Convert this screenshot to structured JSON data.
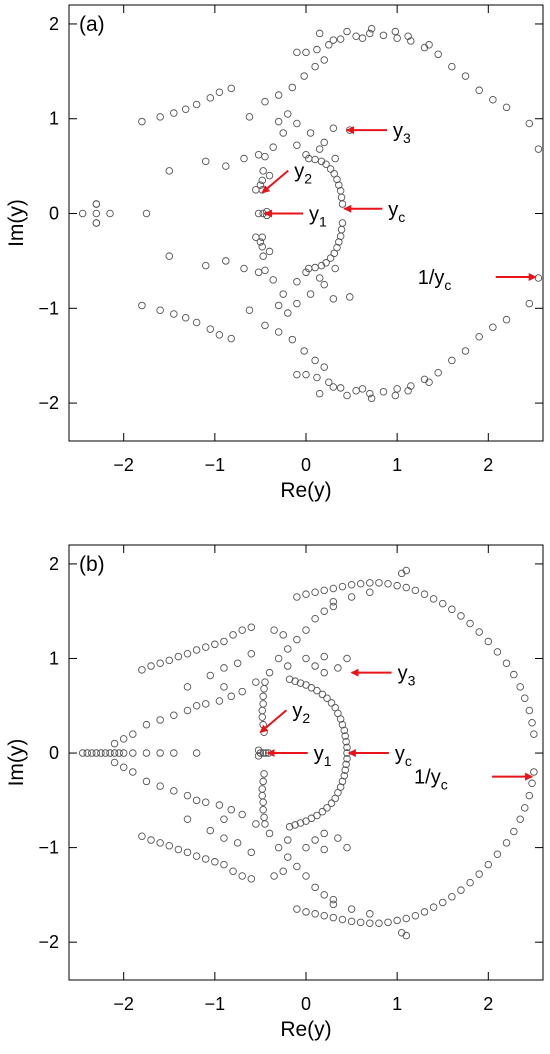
{
  "chart_data": [
    {
      "type": "scatter",
      "panel_label": "(a)",
      "xlabel": "Re(y)",
      "ylabel": "Im(y)",
      "xlim": [
        -2.6,
        2.6
      ],
      "ylim": [
        -2.4,
        2.2
      ],
      "xticks": [
        -2,
        -1,
        0,
        1,
        2
      ],
      "yticks": [
        -2,
        -1,
        0,
        1,
        2
      ],
      "grid": false,
      "marker": "open-circle",
      "points_upper_and_real": [
        [
          -2.45,
          0.0
        ],
        [
          -2.3,
          0.0
        ],
        [
          -2.15,
          0.0
        ],
        [
          -1.75,
          0.0
        ],
        [
          -2.3,
          0.1
        ],
        [
          -2.3,
          -0.1
        ],
        [
          -1.8,
          0.97
        ],
        [
          -1.6,
          1.02
        ],
        [
          -1.45,
          1.06
        ],
        [
          -1.32,
          1.1
        ],
        [
          -1.2,
          1.15
        ],
        [
          -1.05,
          1.22
        ],
        [
          -0.95,
          1.28
        ],
        [
          -0.82,
          1.32
        ],
        [
          -1.5,
          0.45
        ],
        [
          -1.1,
          0.55
        ],
        [
          -0.88,
          0.5
        ],
        [
          -0.68,
          0.58
        ],
        [
          -0.52,
          0.62
        ],
        [
          -0.36,
          0.7
        ],
        [
          -0.62,
          1.02
        ],
        [
          -0.45,
          1.18
        ],
        [
          -0.3,
          1.25
        ],
        [
          -0.15,
          1.33
        ],
        [
          -0.02,
          1.45
        ],
        [
          0.1,
          1.55
        ],
        [
          0.2,
          1.62
        ],
        [
          -0.1,
          1.7
        ],
        [
          0.0,
          1.7
        ],
        [
          0.12,
          1.73
        ],
        [
          0.25,
          1.78
        ],
        [
          0.38,
          1.84
        ],
        [
          0.55,
          1.87
        ],
        [
          0.7,
          1.9
        ],
        [
          0.85,
          1.88
        ],
        [
          1.0,
          1.85
        ],
        [
          1.15,
          1.82
        ],
        [
          1.3,
          1.75
        ],
        [
          1.45,
          1.68
        ],
        [
          1.6,
          1.55
        ],
        [
          1.75,
          1.45
        ],
        [
          1.9,
          1.3
        ],
        [
          2.05,
          1.2
        ],
        [
          2.2,
          1.12
        ],
        [
          2.45,
          0.95
        ],
        [
          2.55,
          0.68
        ],
        [
          0.15,
          1.9
        ],
        [
          0.3,
          1.83
        ],
        [
          0.45,
          1.92
        ],
        [
          0.72,
          1.95
        ],
        [
          0.98,
          1.92
        ],
        [
          1.12,
          1.87
        ],
        [
          1.35,
          1.78
        ],
        [
          0.62,
          1.85
        ],
        [
          -0.45,
          0.6
        ],
        [
          -0.47,
          0.45
        ],
        [
          -0.48,
          0.35
        ],
        [
          -0.5,
          0.3
        ],
        [
          -0.48,
          0.25
        ],
        [
          -0.4,
          0.4
        ],
        [
          -0.55,
          0.25
        ],
        [
          -0.52,
          0.0
        ],
        [
          -0.47,
          0.0
        ],
        [
          -0.43,
          0.02
        ],
        [
          0.4,
          0.1
        ],
        [
          0.39,
          0.17
        ],
        [
          0.38,
          0.24
        ],
        [
          0.36,
          0.3
        ],
        [
          0.34,
          0.36
        ],
        [
          0.31,
          0.42
        ],
        [
          0.27,
          0.47
        ],
        [
          0.22,
          0.52
        ],
        [
          0.17,
          0.55
        ],
        [
          0.1,
          0.57
        ],
        [
          0.03,
          0.58
        ],
        [
          -0.1,
          0.72
        ],
        [
          0.05,
          0.85
        ],
        [
          0.2,
          0.75
        ],
        [
          -0.25,
          0.85
        ],
        [
          -0.3,
          0.97
        ],
        [
          -0.2,
          1.05
        ],
        [
          -0.1,
          0.95
        ],
        [
          0.0,
          0.62
        ],
        [
          0.15,
          0.68
        ],
        [
          0.32,
          0.58
        ],
        [
          0.48,
          0.88
        ],
        [
          0.3,
          0.9
        ]
      ],
      "symmetric_about_real_axis": true,
      "annotations": [
        {
          "main": "y",
          "sub": "3",
          "x": 0.45,
          "y": 0.88
        },
        {
          "main": "y",
          "sub": "2",
          "x": -0.48,
          "y": 0.22
        },
        {
          "main": "y",
          "sub": "1",
          "x": -0.45,
          "y": 0.0
        },
        {
          "main": "y",
          "sub": "c",
          "x": 0.42,
          "y": 0.05
        },
        {
          "main": "1/y",
          "sub": "c",
          "x": 2.52,
          "y": -0.67
        }
      ]
    },
    {
      "type": "scatter",
      "panel_label": "(b)",
      "xlabel": "Re(y)",
      "ylabel": "Im(y)",
      "xlim": [
        -2.6,
        2.6
      ],
      "ylim": [
        -2.4,
        2.2
      ],
      "xticks": [
        -2,
        -1,
        0,
        1,
        2
      ],
      "yticks": [
        -2,
        -1,
        0,
        1,
        2
      ],
      "grid": false,
      "marker": "open-circle",
      "points_upper_and_real": [
        [
          -2.45,
          0.0
        ],
        [
          -2.4,
          0.0
        ],
        [
          -2.35,
          0.0
        ],
        [
          -2.3,
          0.0
        ],
        [
          -2.25,
          0.0
        ],
        [
          -2.2,
          0.0
        ],
        [
          -2.15,
          0.0
        ],
        [
          -2.1,
          0.0
        ],
        [
          -2.05,
          0.0
        ],
        [
          -2.0,
          0.0
        ],
        [
          -1.9,
          0.0
        ],
        [
          -1.75,
          0.0
        ],
        [
          -1.6,
          0.0
        ],
        [
          -1.45,
          0.0
        ],
        [
          -1.2,
          0.0
        ],
        [
          -2.1,
          0.1
        ],
        [
          -2.0,
          0.15
        ],
        [
          -1.9,
          0.2
        ],
        [
          -1.75,
          0.3
        ],
        [
          -1.6,
          0.35
        ],
        [
          -1.45,
          0.4
        ],
        [
          -1.3,
          0.45
        ],
        [
          -1.8,
          0.88
        ],
        [
          -1.7,
          0.92
        ],
        [
          -1.6,
          0.95
        ],
        [
          -1.5,
          0.98
        ],
        [
          -1.4,
          1.02
        ],
        [
          -1.3,
          1.05
        ],
        [
          -1.2,
          1.09
        ],
        [
          -1.1,
          1.12
        ],
        [
          -1.0,
          1.15
        ],
        [
          -0.9,
          1.18
        ],
        [
          -0.8,
          1.25
        ],
        [
          -0.7,
          1.3
        ],
        [
          -0.6,
          1.33
        ],
        [
          -1.2,
          0.5
        ],
        [
          -1.1,
          0.52
        ],
        [
          -0.95,
          0.55
        ],
        [
          -0.82,
          0.6
        ],
        [
          -0.7,
          0.65
        ],
        [
          -0.55,
          0.75
        ],
        [
          -0.4,
          0.85
        ],
        [
          -0.3,
          1.0
        ],
        [
          -0.2,
          1.1
        ],
        [
          -0.1,
          1.2
        ],
        [
          0.0,
          1.3
        ],
        [
          0.1,
          1.42
        ],
        [
          0.2,
          1.5
        ],
        [
          0.3,
          1.6
        ],
        [
          -0.1,
          1.65
        ],
        [
          0.0,
          1.68
        ],
        [
          0.1,
          1.7
        ],
        [
          0.2,
          1.72
        ],
        [
          0.3,
          1.74
        ],
        [
          0.4,
          1.76
        ],
        [
          0.5,
          1.78
        ],
        [
          0.6,
          1.79
        ],
        [
          0.7,
          1.8
        ],
        [
          0.8,
          1.8
        ],
        [
          0.9,
          1.79
        ],
        [
          1.0,
          1.77
        ],
        [
          1.1,
          1.75
        ],
        [
          1.2,
          1.72
        ],
        [
          1.3,
          1.68
        ],
        [
          1.4,
          1.63
        ],
        [
          1.5,
          1.58
        ],
        [
          1.6,
          1.52
        ],
        [
          1.7,
          1.45
        ],
        [
          1.8,
          1.37
        ],
        [
          1.9,
          1.28
        ],
        [
          2.0,
          1.18
        ],
        [
          2.1,
          1.07
        ],
        [
          2.2,
          0.95
        ],
        [
          2.28,
          0.83
        ],
        [
          2.35,
          0.7
        ],
        [
          2.4,
          0.58
        ],
        [
          2.45,
          0.45
        ],
        [
          2.48,
          0.32
        ],
        [
          2.5,
          0.2
        ],
        [
          1.05,
          1.9
        ],
        [
          1.1,
          1.93
        ],
        [
          0.5,
          1.65
        ],
        [
          0.3,
          1.55
        ],
        [
          0.7,
          1.7
        ],
        [
          -0.45,
          0.75
        ],
        [
          -0.46,
          0.68
        ],
        [
          -0.47,
          0.6
        ],
        [
          -0.47,
          0.52
        ],
        [
          -0.48,
          0.45
        ],
        [
          -0.48,
          0.38
        ],
        [
          -0.47,
          0.3
        ],
        [
          -0.46,
          0.22
        ],
        [
          -0.5,
          0.0
        ],
        [
          -0.47,
          0.0
        ],
        [
          -0.44,
          0.0
        ],
        [
          -0.41,
          0.0
        ],
        [
          -0.52,
          0.03
        ],
        [
          0.45,
          0.0
        ],
        [
          0.45,
          0.06
        ],
        [
          0.44,
          0.12
        ],
        [
          0.43,
          0.18
        ],
        [
          0.42,
          0.24
        ],
        [
          0.4,
          0.3
        ],
        [
          0.38,
          0.36
        ],
        [
          0.35,
          0.42
        ],
        [
          0.32,
          0.48
        ],
        [
          0.28,
          0.53
        ],
        [
          0.23,
          0.58
        ],
        [
          0.18,
          0.62
        ],
        [
          0.12,
          0.66
        ],
        [
          0.06,
          0.69
        ],
        [
          0.0,
          0.72
        ],
        [
          -0.06,
          0.74
        ],
        [
          -0.12,
          0.76
        ],
        [
          -0.18,
          0.78
        ],
        [
          0.2,
          0.85
        ],
        [
          0.35,
          0.9
        ],
        [
          0.45,
          1.0
        ],
        [
          0.2,
          1.02
        ],
        [
          0.0,
          1.0
        ],
        [
          -0.2,
          0.92
        ],
        [
          0.1,
          0.92
        ],
        [
          -0.35,
          1.3
        ],
        [
          -0.25,
          1.25
        ],
        [
          -0.6,
          1.05
        ],
        [
          -0.75,
          0.95
        ],
        [
          -0.9,
          0.9
        ],
        [
          -1.05,
          0.82
        ],
        [
          -0.9,
          0.7
        ],
        [
          -1.3,
          0.7
        ]
      ],
      "symmetric_about_real_axis": true,
      "annotations": [
        {
          "main": "y",
          "sub": "3",
          "x": 0.5,
          "y": 0.85
        },
        {
          "main": "y",
          "sub": "2",
          "x": -0.5,
          "y": 0.22
        },
        {
          "main": "y",
          "sub": "1",
          "x": -0.42,
          "y": 0.0
        },
        {
          "main": "y",
          "sub": "c",
          "x": 0.47,
          "y": 0.0
        },
        {
          "main": "1/y",
          "sub": "c",
          "x": 2.48,
          "y": -0.25
        }
      ]
    }
  ]
}
